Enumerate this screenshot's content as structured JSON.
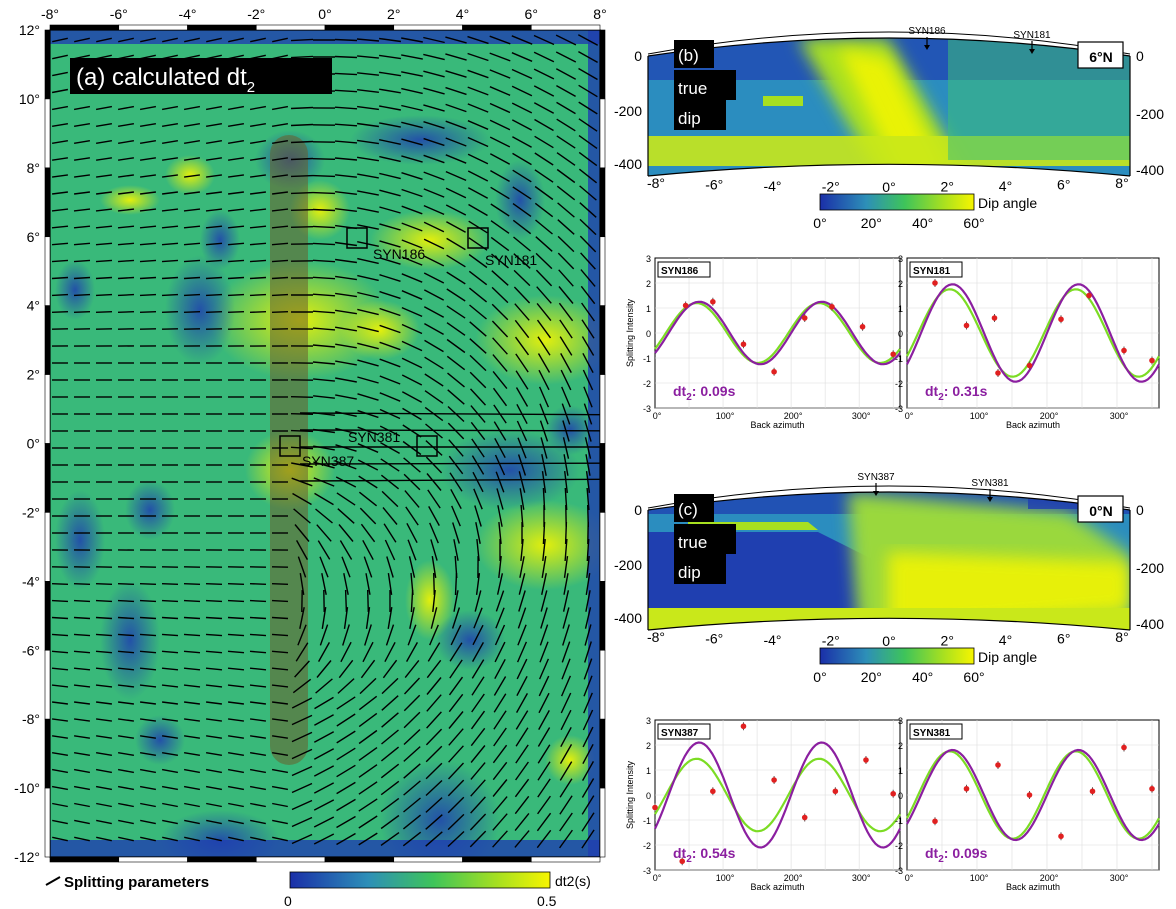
{
  "panel_a": {
    "title_prefix": "(a) calculated dt",
    "title_sub": "2",
    "x_ticks": [
      "-8°",
      "-6°",
      "-4°",
      "-2°",
      "0°",
      "2°",
      "4°",
      "6°",
      "8°"
    ],
    "y_ticks": [
      "12°",
      "10°",
      "8°",
      "6°",
      "4°",
      "2°",
      "0°",
      "-2°",
      "-4°",
      "-6°",
      "-8°",
      "-10°",
      "-12°"
    ],
    "stations": [
      "SYN186",
      "SYN181",
      "SYN381",
      "SYN387"
    ],
    "legend_label": "Splitting parameters",
    "colorbar_label": "dt2(s)",
    "colorbar_ticks": [
      "0",
      "0.5"
    ]
  },
  "sections": [
    {
      "id": "b",
      "letter": "(b)",
      "label_line1": "true",
      "label_line2": "dip",
      "lat": "6°N",
      "stations": [
        "SYN186",
        "SYN181"
      ],
      "depth_ticks_left": [
        "0",
        "-200",
        "-400"
      ],
      "depth_ticks_right": [
        "0",
        "-200",
        "-400"
      ],
      "x_ticks": [
        "-8°",
        "-6°",
        "-4°",
        "-2°",
        "0°",
        "2°",
        "4°",
        "6°",
        "8°"
      ],
      "colorbar_label": "Dip angle",
      "colorbar_ticks": [
        "0°",
        "20°",
        "40°",
        "60°"
      ]
    },
    {
      "id": "c",
      "letter": "(c)",
      "label_line1": "true",
      "label_line2": "dip",
      "lat": "0°N",
      "stations": [
        "SYN387",
        "SYN381"
      ],
      "depth_ticks_left": [
        "0",
        "-200",
        "-400"
      ],
      "depth_ticks_right": [
        "0",
        "-200",
        "-400"
      ],
      "x_ticks": [
        "-8°",
        "-6°",
        "-4°",
        "-2°",
        "0°",
        "2°",
        "4°",
        "6°",
        "8°"
      ],
      "colorbar_label": "Dip angle",
      "colorbar_ticks": [
        "0°",
        "20°",
        "40°",
        "60°"
      ]
    }
  ],
  "splitting_plots": {
    "ylabel": "Splitting Intensity",
    "xlabel": "Back azimuth",
    "x_ticks": [
      "0°",
      "100°",
      "200°",
      "300°"
    ],
    "y_ticks": [
      "3",
      "2",
      "1",
      "0",
      "-1",
      "-2",
      "-3"
    ],
    "plots": [
      {
        "station": "SYN186",
        "dt_prefix": "dt",
        "dt_sub": "2",
        "dt_value": ": 0.09s",
        "amp_green": 1.2,
        "amp_purple": 1.25,
        "phase": 0,
        "points": [
          [
            45,
            1.1
          ],
          [
            85,
            1.25
          ],
          [
            130,
            -0.45
          ],
          [
            175,
            -1.55
          ],
          [
            220,
            0.6
          ],
          [
            260,
            1.05
          ],
          [
            305,
            0.25
          ],
          [
            350,
            -0.85
          ]
        ]
      },
      {
        "station": "SYN181",
        "dt_prefix": "dt",
        "dt_sub": "2",
        "dt_value": ": 0.31s",
        "amp_green": 1.75,
        "amp_purple": 1.95,
        "phase": 0,
        "points": [
          [
            40,
            2.0
          ],
          [
            85,
            0.3
          ],
          [
            125,
            0.6
          ],
          [
            130,
            -1.6
          ],
          [
            175,
            -1.3
          ],
          [
            220,
            0.55
          ],
          [
            260,
            1.5
          ],
          [
            310,
            -0.7
          ],
          [
            350,
            -1.1
          ]
        ]
      },
      {
        "station": "SYN387",
        "dt_prefix": "dt",
        "dt_sub": "2",
        "dt_value": ": 0.54s",
        "amp_green": 1.45,
        "amp_purple": 2.1,
        "phase": 0,
        "points": [
          [
            0,
            -0.5
          ],
          [
            40,
            -2.65
          ],
          [
            85,
            0.15
          ],
          [
            130,
            2.75
          ],
          [
            175,
            0.6
          ],
          [
            220,
            -0.9
          ],
          [
            265,
            0.15
          ],
          [
            310,
            1.4
          ],
          [
            350,
            0.05
          ]
        ]
      },
      {
        "station": "SYN381",
        "dt_prefix": "dt",
        "dt_sub": "2",
        "dt_value": ": 0.09s",
        "amp_green": 1.75,
        "amp_purple": 1.8,
        "phase": 0,
        "points": [
          [
            40,
            -1.05
          ],
          [
            85,
            0.25
          ],
          [
            130,
            1.2
          ],
          [
            175,
            0.0
          ],
          [
            220,
            -1.65
          ],
          [
            265,
            0.15
          ],
          [
            310,
            1.9
          ],
          [
            350,
            0.25
          ]
        ]
      }
    ]
  },
  "colors": {
    "low": "#1f3fb0",
    "mid": "#5bd35a",
    "high": "#f5f500",
    "green_curve": "#7cdc24",
    "purple_curve": "#8b1fa0",
    "point": "#e02020"
  }
}
